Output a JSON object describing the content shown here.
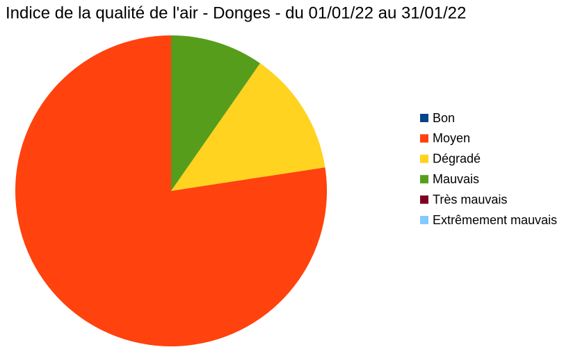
{
  "chart_data": {
    "type": "pie",
    "title": "Indice de la qualité de l'air - Donges - du 01/01/22 au 31/01/22",
    "categories": [
      "Bon",
      "Moyen",
      "Dégradé",
      "Mauvais",
      "Très mauvais",
      "Extrêmement mauvais"
    ],
    "values": [
      0,
      24,
      4,
      3,
      0,
      0
    ],
    "colors": [
      "#004586",
      "#ff420e",
      "#ffd320",
      "#579d1c",
      "#7e0021",
      "#83caff"
    ],
    "legend": "right"
  }
}
